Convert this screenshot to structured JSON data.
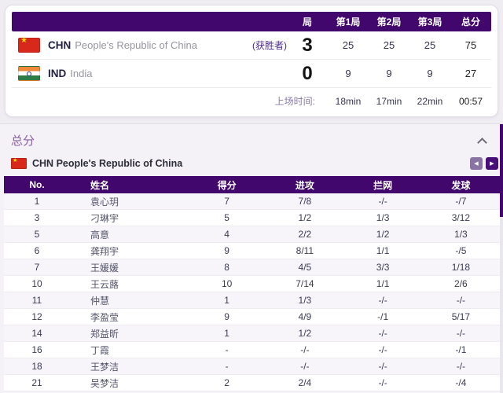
{
  "colors": {
    "brand_purple": "#42076d",
    "winner_text_purple": "#4c2c87",
    "section_title_purple": "#8a5fa5",
    "nav_next_purple": "#470d79",
    "nav_prev_purple": "#8973a3",
    "china_flag_red": "#d8281c",
    "india_saffron": "#f0883a",
    "india_green": "#2e7d46"
  },
  "scoreboard": {
    "columns": {
      "set": "局",
      "s1": "第1局",
      "s2": "第2局",
      "s3": "第3局",
      "total": "总分"
    },
    "teams": [
      {
        "code": "CHN",
        "name": "People's Republic of China",
        "winner_tag": "(获胜者)",
        "sets_won": "3",
        "s1": "25",
        "s2": "25",
        "s3": "25",
        "total": "75"
      },
      {
        "code": "IND",
        "name": "India",
        "winner_tag": "",
        "sets_won": "0",
        "s1": "9",
        "s2": "9",
        "s3": "9",
        "total": "27"
      }
    ],
    "time": {
      "label": "上场时间:",
      "s1": "18min",
      "s2": "17min",
      "s3": "22min",
      "total": "00:57"
    }
  },
  "stats": {
    "section_title": "总分",
    "team": {
      "code": "CHN",
      "name": "People's Republic of China"
    },
    "columns": [
      "No.",
      "姓名",
      "得分",
      "进攻",
      "拦网",
      "发球"
    ],
    "rows": [
      [
        "1",
        "袁心玥",
        "7",
        "7/8",
        "-/-",
        "-/7"
      ],
      [
        "3",
        "刁琳宇",
        "5",
        "1/2",
        "1/3",
        "3/12"
      ],
      [
        "5",
        "高意",
        "4",
        "2/2",
        "1/2",
        "1/3"
      ],
      [
        "6",
        "龚翔宇",
        "9",
        "8/11",
        "1/1",
        "-/5"
      ],
      [
        "7",
        "王媛媛",
        "8",
        "4/5",
        "3/3",
        "1/18"
      ],
      [
        "10",
        "王云蕗",
        "10",
        "7/14",
        "1/1",
        "2/6"
      ],
      [
        "11",
        "仲慧",
        "1",
        "1/3",
        "-/-",
        "-/-"
      ],
      [
        "12",
        "李盈莹",
        "9",
        "4/9",
        "-/1",
        "5/17"
      ],
      [
        "14",
        "郑益昕",
        "1",
        "1/2",
        "-/-",
        "-/-"
      ],
      [
        "16",
        "丁霞",
        "-",
        "-/-",
        "-/-",
        "-/1"
      ],
      [
        "18",
        "王梦洁",
        "-",
        "-/-",
        "-/-",
        "-/-"
      ],
      [
        "21",
        "吴梦洁",
        "2",
        "2/4",
        "-/-",
        "-/4"
      ]
    ]
  }
}
